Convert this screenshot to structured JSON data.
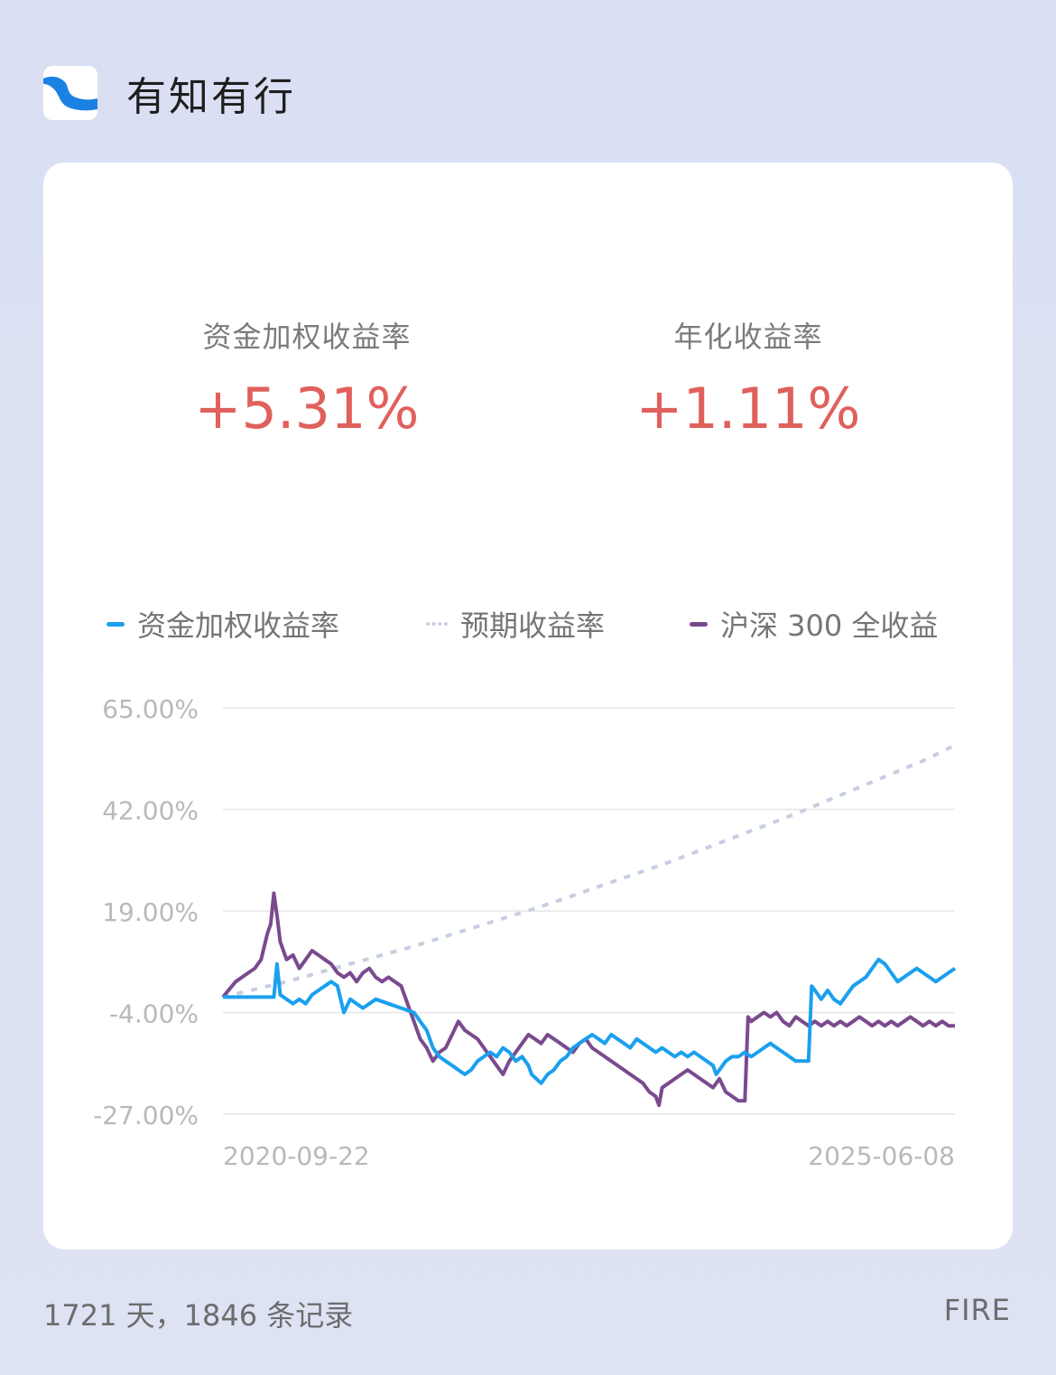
{
  "app": {
    "title": "有知有行",
    "logo_icon": "wave-logo-icon"
  },
  "metrics": [
    {
      "label": "资金加权收益率",
      "value": "+5.31%"
    },
    {
      "label": "年化收益率",
      "value": "+1.11%"
    }
  ],
  "colors": {
    "positive": "#e0605c",
    "fund": "#1aa0ee",
    "expected": "#c6cfe0",
    "index": "#7a4a8e",
    "grid": "#e6e6e6"
  },
  "chart_data": {
    "type": "line",
    "legend": [
      "资金加权收益率",
      "预期收益率",
      "沪深 300 全收益"
    ],
    "y_ticks": [
      "65.00%",
      "42.00%",
      "19.00%",
      "-4.00%",
      "-27.00%"
    ],
    "y_tick_values": [
      65,
      42,
      19,
      -4,
      -27
    ],
    "ylim": [
      -27,
      65
    ],
    "x_start_label": "2020-09-22",
    "x_end_label": "2025-06-08",
    "series": [
      {
        "name": "资金加权收益率",
        "style": "solid",
        "points": [
          [
            0,
            -0.5
          ],
          [
            0.08,
            -0.5
          ],
          [
            0.085,
            7
          ],
          [
            0.09,
            0
          ],
          [
            0.11,
            -2
          ],
          [
            0.12,
            -1
          ],
          [
            0.13,
            -2
          ],
          [
            0.14,
            0
          ],
          [
            0.16,
            2
          ],
          [
            0.17,
            3
          ],
          [
            0.18,
            2
          ],
          [
            0.19,
            -4
          ],
          [
            0.2,
            -1
          ],
          [
            0.22,
            -3
          ],
          [
            0.24,
            -1
          ],
          [
            0.26,
            -2
          ],
          [
            0.28,
            -3
          ],
          [
            0.3,
            -4
          ],
          [
            0.31,
            -6
          ],
          [
            0.32,
            -8
          ],
          [
            0.33,
            -12
          ],
          [
            0.34,
            -14
          ],
          [
            0.35,
            -15
          ],
          [
            0.36,
            -16
          ],
          [
            0.37,
            -17
          ],
          [
            0.38,
            -18
          ],
          [
            0.39,
            -17
          ],
          [
            0.4,
            -15
          ],
          [
            0.41,
            -14
          ],
          [
            0.42,
            -13
          ],
          [
            0.43,
            -14
          ],
          [
            0.44,
            -12
          ],
          [
            0.45,
            -13
          ],
          [
            0.46,
            -15
          ],
          [
            0.47,
            -14
          ],
          [
            0.48,
            -16
          ],
          [
            0.485,
            -18
          ],
          [
            0.5,
            -20
          ],
          [
            0.51,
            -18
          ],
          [
            0.52,
            -17
          ],
          [
            0.53,
            -15
          ],
          [
            0.54,
            -14
          ],
          [
            0.55,
            -12
          ],
          [
            0.56,
            -11
          ],
          [
            0.57,
            -10
          ],
          [
            0.58,
            -9
          ],
          [
            0.59,
            -10
          ],
          [
            0.6,
            -11
          ],
          [
            0.61,
            -9
          ],
          [
            0.62,
            -10
          ],
          [
            0.63,
            -11
          ],
          [
            0.64,
            -12
          ],
          [
            0.65,
            -10
          ],
          [
            0.66,
            -11
          ],
          [
            0.67,
            -12
          ],
          [
            0.68,
            -13
          ],
          [
            0.69,
            -12
          ],
          [
            0.7,
            -13
          ],
          [
            0.71,
            -14
          ],
          [
            0.72,
            -13
          ],
          [
            0.73,
            -14
          ],
          [
            0.74,
            -13
          ],
          [
            0.75,
            -14
          ],
          [
            0.76,
            -15
          ],
          [
            0.77,
            -16
          ],
          [
            0.775,
            -18
          ],
          [
            0.78,
            -17
          ],
          [
            0.79,
            -15
          ],
          [
            0.8,
            -14
          ],
          [
            0.81,
            -14
          ],
          [
            0.82,
            -13
          ],
          [
            0.83,
            -14
          ],
          [
            0.84,
            -13
          ],
          [
            0.85,
            -12
          ],
          [
            0.86,
            -11
          ],
          [
            0.87,
            -12
          ],
          [
            0.88,
            -13
          ],
          [
            0.89,
            -14
          ],
          [
            0.9,
            -15
          ],
          [
            0.91,
            -15
          ],
          [
            0.92,
            -15
          ],
          [
            0.925,
            2
          ],
          [
            0.93,
            1
          ],
          [
            0.94,
            -1
          ],
          [
            0.95,
            1
          ],
          [
            0.96,
            -1
          ],
          [
            0.97,
            -2
          ],
          [
            0.98,
            0
          ],
          [
            0.99,
            2
          ],
          [
            1.0,
            3
          ],
          [
            1.01,
            4
          ],
          [
            1.02,
            6
          ],
          [
            1.03,
            8
          ],
          [
            1.04,
            7
          ],
          [
            1.05,
            5
          ],
          [
            1.06,
            3
          ],
          [
            1.07,
            4
          ],
          [
            1.08,
            5
          ],
          [
            1.09,
            6
          ],
          [
            1.1,
            5
          ],
          [
            1.11,
            4
          ],
          [
            1.12,
            3
          ],
          [
            1.13,
            4
          ],
          [
            1.14,
            5
          ],
          [
            1.15,
            6
          ]
        ]
      },
      {
        "name": "预期收益率",
        "style": "dotted",
        "points": [
          [
            0,
            -0.5
          ],
          [
            0.1,
            3
          ],
          [
            0.2,
            7
          ],
          [
            0.3,
            11
          ],
          [
            0.4,
            15.5
          ],
          [
            0.5,
            20
          ],
          [
            0.6,
            25
          ],
          [
            0.7,
            30
          ],
          [
            0.8,
            35.5
          ],
          [
            0.9,
            41
          ],
          [
            1.0,
            47
          ],
          [
            1.1,
            53
          ],
          [
            1.15,
            56.5
          ]
        ]
      },
      {
        "name": "沪深 300 全收益",
        "style": "solid",
        "points": [
          [
            0,
            -0.5
          ],
          [
            0.02,
            3
          ],
          [
            0.04,
            5
          ],
          [
            0.05,
            6
          ],
          [
            0.06,
            8
          ],
          [
            0.07,
            14
          ],
          [
            0.075,
            16
          ],
          [
            0.08,
            23
          ],
          [
            0.085,
            18
          ],
          [
            0.09,
            12
          ],
          [
            0.1,
            8
          ],
          [
            0.11,
            9
          ],
          [
            0.12,
            6
          ],
          [
            0.13,
            8
          ],
          [
            0.14,
            10
          ],
          [
            0.15,
            9
          ],
          [
            0.16,
            8
          ],
          [
            0.17,
            7
          ],
          [
            0.18,
            5
          ],
          [
            0.19,
            4
          ],
          [
            0.2,
            5
          ],
          [
            0.21,
            3
          ],
          [
            0.22,
            5
          ],
          [
            0.23,
            6
          ],
          [
            0.24,
            4
          ],
          [
            0.25,
            3
          ],
          [
            0.26,
            4
          ],
          [
            0.27,
            3
          ],
          [
            0.28,
            2
          ],
          [
            0.29,
            -2
          ],
          [
            0.3,
            -6
          ],
          [
            0.31,
            -10
          ],
          [
            0.32,
            -12
          ],
          [
            0.33,
            -15
          ],
          [
            0.34,
            -13
          ],
          [
            0.35,
            -12
          ],
          [
            0.36,
            -9
          ],
          [
            0.37,
            -6
          ],
          [
            0.38,
            -8
          ],
          [
            0.39,
            -9
          ],
          [
            0.4,
            -10
          ],
          [
            0.41,
            -12
          ],
          [
            0.42,
            -14
          ],
          [
            0.43,
            -16
          ],
          [
            0.44,
            -18
          ],
          [
            0.45,
            -15
          ],
          [
            0.46,
            -13
          ],
          [
            0.47,
            -11
          ],
          [
            0.48,
            -9
          ],
          [
            0.49,
            -10
          ],
          [
            0.5,
            -11
          ],
          [
            0.51,
            -9
          ],
          [
            0.52,
            -10
          ],
          [
            0.53,
            -11
          ],
          [
            0.54,
            -12
          ],
          [
            0.55,
            -13
          ],
          [
            0.56,
            -11
          ],
          [
            0.57,
            -10
          ],
          [
            0.58,
            -12
          ],
          [
            0.59,
            -13
          ],
          [
            0.6,
            -14
          ],
          [
            0.61,
            -15
          ],
          [
            0.62,
            -16
          ],
          [
            0.63,
            -17
          ],
          [
            0.64,
            -18
          ],
          [
            0.65,
            -19
          ],
          [
            0.66,
            -20
          ],
          [
            0.67,
            -22
          ],
          [
            0.68,
            -23
          ],
          [
            0.685,
            -25
          ],
          [
            0.69,
            -21
          ],
          [
            0.7,
            -20
          ],
          [
            0.71,
            -19
          ],
          [
            0.72,
            -18
          ],
          [
            0.73,
            -17
          ],
          [
            0.74,
            -18
          ],
          [
            0.75,
            -19
          ],
          [
            0.76,
            -20
          ],
          [
            0.77,
            -21
          ],
          [
            0.78,
            -19
          ],
          [
            0.79,
            -22
          ],
          [
            0.8,
            -23
          ],
          [
            0.81,
            -24
          ],
          [
            0.82,
            -24
          ],
          [
            0.825,
            -5
          ],
          [
            0.83,
            -6
          ],
          [
            0.84,
            -5
          ],
          [
            0.85,
            -4
          ],
          [
            0.86,
            -5
          ],
          [
            0.87,
            -4
          ],
          [
            0.88,
            -6
          ],
          [
            0.89,
            -7
          ],
          [
            0.9,
            -5
          ],
          [
            0.91,
            -6
          ],
          [
            0.92,
            -7
          ],
          [
            0.93,
            -6
          ],
          [
            0.94,
            -7
          ],
          [
            0.95,
            -6
          ],
          [
            0.96,
            -7
          ],
          [
            0.97,
            -6
          ],
          [
            0.98,
            -7
          ],
          [
            0.99,
            -6
          ],
          [
            1.0,
            -5
          ],
          [
            1.01,
            -6
          ],
          [
            1.02,
            -7
          ],
          [
            1.03,
            -6
          ],
          [
            1.04,
            -7
          ],
          [
            1.05,
            -6
          ],
          [
            1.06,
            -7
          ],
          [
            1.07,
            -6
          ],
          [
            1.08,
            -5
          ],
          [
            1.09,
            -6
          ],
          [
            1.1,
            -7
          ],
          [
            1.11,
            -6
          ],
          [
            1.12,
            -7
          ],
          [
            1.13,
            -6
          ],
          [
            1.14,
            -7
          ],
          [
            1.15,
            -7
          ]
        ]
      }
    ]
  },
  "footer": {
    "summary": "1721 天，1846 条记录",
    "brand": "FIRE"
  }
}
